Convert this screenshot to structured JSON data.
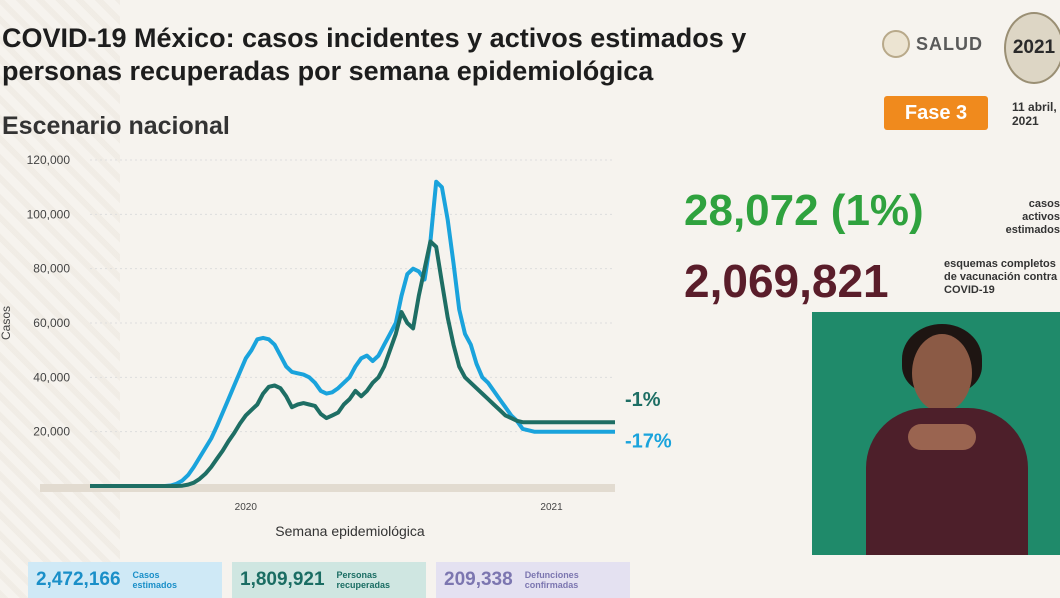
{
  "header": {
    "title": "COVID-19 México: casos incidentes y activos estimados y personas recuperadas por semana epidemiológica",
    "subtitle": "Escenario nacional",
    "salud": "SALUD",
    "logo_year": "2021",
    "fase": "Fase 3",
    "date": "11 abril,\n2021"
  },
  "stats": {
    "active_value": "28,072 (1%)",
    "active_label": "casos activos\nestimados",
    "vaccination_value": "2,069,821",
    "vaccination_label": "esquemas completos\nde vacunación contra\nCOVID-19"
  },
  "boxes": [
    {
      "value": "2,472,166",
      "label": "Casos\nestimados",
      "bg": "#cfe9f6",
      "color": "#1a8fc8"
    },
    {
      "value": "1,809,921",
      "label": "Personas\nrecuperadas",
      "bg": "#cfe6e1",
      "color": "#1a6d63"
    },
    {
      "value": "209,338",
      "label": "Defunciones\nconfirmadas",
      "bg": "#e4e1f1",
      "color": "#7c76b0"
    }
  ],
  "chart_data": {
    "type": "line",
    "ylabel": "Casos",
    "xlabel": "Semana epidemiológica",
    "ylim": [
      0,
      120000
    ],
    "yticks": [
      "20,000",
      "40,000",
      "60,000",
      "80,000",
      "100,000",
      "120,000"
    ],
    "ytick_values": [
      20000,
      40000,
      60000,
      80000,
      100000,
      120000
    ],
    "xtick_labels": [
      {
        "label": "2020",
        "week": 27
      },
      {
        "label": "2021",
        "week": 80
      }
    ],
    "x_range": [
      0,
      91
    ],
    "series": [
      {
        "color": "#1aa3dc",
        "end_label": "-17%",
        "values": [
          0,
          0,
          0,
          0,
          0,
          0,
          0,
          0,
          0,
          0,
          0,
          0,
          0,
          0,
          200,
          800,
          2000,
          4000,
          7000,
          10500,
          14000,
          17500,
          22000,
          27000,
          32000,
          37000,
          42000,
          47000,
          50000,
          54000,
          54500,
          54000,
          52000,
          48000,
          44000,
          42000,
          41500,
          41000,
          40000,
          38000,
          35000,
          34000,
          34500,
          36000,
          38000,
          40000,
          44000,
          47000,
          48000,
          46000,
          48000,
          52000,
          56000,
          60000,
          70000,
          78000,
          80000,
          79000,
          76000,
          90000,
          112000,
          110000,
          98000,
          82000,
          65000,
          56000,
          52000,
          45000,
          40000,
          38000,
          35000,
          32000,
          29000,
          26000,
          24000,
          21000,
          20500,
          20000,
          20000,
          20000,
          20000,
          20000,
          20000,
          20000,
          20000,
          20000,
          20000,
          20000,
          20000,
          20000,
          20000,
          20000
        ]
      },
      {
        "color": "#1e6e64",
        "end_label": "-1%",
        "values": [
          0,
          0,
          0,
          0,
          0,
          0,
          0,
          0,
          0,
          0,
          0,
          0,
          0,
          0,
          0,
          0,
          100,
          500,
          1200,
          2600,
          4500,
          7000,
          10000,
          13000,
          16500,
          19500,
          23000,
          26000,
          28000,
          30000,
          34000,
          36500,
          37000,
          36000,
          33000,
          29000,
          30000,
          30500,
          30000,
          29500,
          26500,
          25000,
          26000,
          27000,
          30000,
          32000,
          35000,
          33000,
          35000,
          38000,
          40000,
          44000,
          50000,
          56000,
          64000,
          60000,
          58000,
          70000,
          80000,
          90000,
          88000,
          75000,
          62000,
          52000,
          44000,
          40000,
          38000,
          36000,
          34000,
          32000,
          30000,
          28000,
          26000,
          25000,
          24000,
          23500,
          23500,
          23500,
          23500,
          23500,
          23500,
          23500,
          23500,
          23500,
          23500,
          23500,
          23500,
          23500,
          23500,
          23500,
          23500,
          23500
        ]
      }
    ]
  }
}
